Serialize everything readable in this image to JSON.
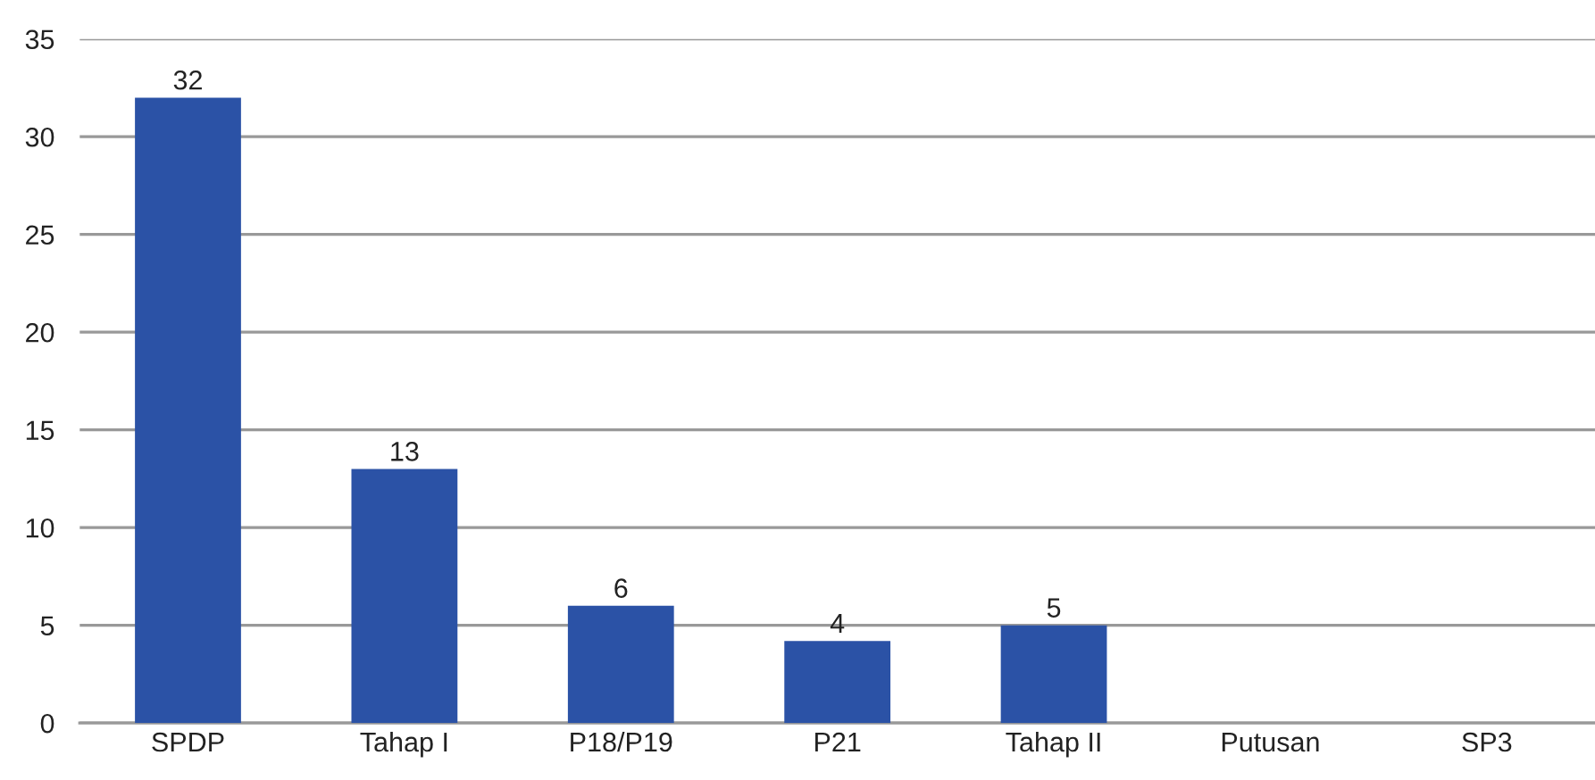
{
  "chart_data": {
    "type": "bar",
    "categories": [
      "SPDP",
      "Tahap I",
      "P18/P19",
      "P21",
      "Tahap II",
      "Putusan",
      "SP3"
    ],
    "values": [
      32,
      13,
      6,
      4.2,
      5,
      null,
      null
    ],
    "value_labels": [
      "32",
      "13",
      "6",
      "4",
      "5",
      null,
      null
    ],
    "color": "#2b52a6",
    "ylim": [
      0,
      35
    ],
    "yticks": [
      0,
      5,
      10,
      15,
      20,
      25,
      30,
      35
    ],
    "grid": "y"
  }
}
